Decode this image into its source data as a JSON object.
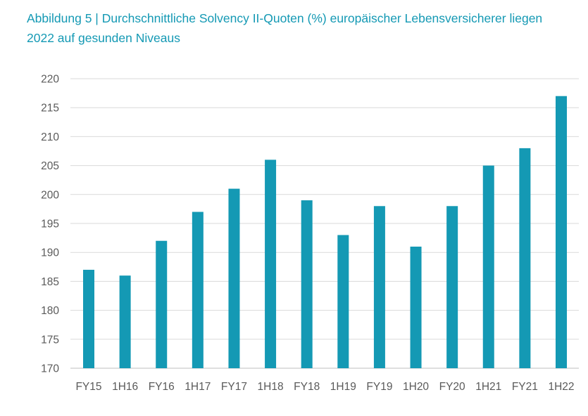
{
  "chart_data": {
    "type": "bar",
    "title_lines": [
      "Abbildung 5 | Durchschnittliche Solvency II-Quoten (%) europäischer Lebensversicherer liegen",
      "2022 auf gesunden Niveaus"
    ],
    "categories": [
      "FY15",
      "1H16",
      "FY16",
      "1H17",
      "FY17",
      "1H18",
      "FY18",
      "1H19",
      "FY19",
      "1H20",
      "FY20",
      "1H21",
      "FY21",
      "1H22"
    ],
    "values": [
      187,
      186,
      192,
      197,
      201,
      206,
      199,
      193,
      198,
      191,
      198,
      205,
      208,
      217
    ],
    "xlabel": "",
    "ylabel": "",
    "ylim": [
      170,
      220
    ],
    "yticks": [
      170,
      175,
      180,
      185,
      190,
      195,
      200,
      205,
      210,
      215,
      220
    ],
    "grid": true,
    "bar_color": "#1499b4",
    "title_color": "#1499b4"
  }
}
